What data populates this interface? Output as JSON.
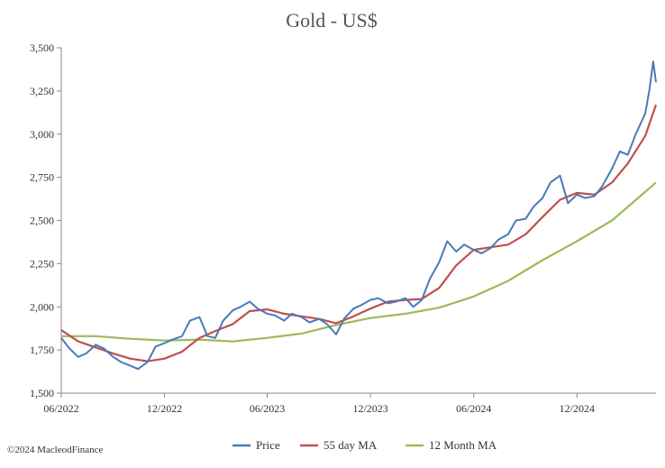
{
  "chart_data": {
    "type": "line",
    "title": "Gold - US$",
    "xlabel": "",
    "ylabel": "",
    "x_tick_labels": [
      "06/2022",
      "12/2022",
      "06/2023",
      "12/2023",
      "06/2024",
      "12/2024"
    ],
    "y_tick_labels": [
      "1,500",
      "1,750",
      "2,000",
      "2,250",
      "2,500",
      "2,750",
      "3,000",
      "3,250",
      "3,500"
    ],
    "ylim": [
      1500,
      3500
    ],
    "xlim": [
      "2022-06-01",
      "2025-04-20"
    ],
    "grid": false,
    "legend_position": "bottom",
    "footer": "©2024 MacleodFinance",
    "series": [
      {
        "name": "Price",
        "color": "#4a7ab8",
        "x": [
          "2022-06-01",
          "2022-06-15",
          "2022-07-01",
          "2022-07-15",
          "2022-08-01",
          "2022-08-15",
          "2022-09-01",
          "2022-09-15",
          "2022-10-01",
          "2022-10-15",
          "2022-11-01",
          "2022-11-15",
          "2022-12-01",
          "2022-12-15",
          "2023-01-01",
          "2023-01-15",
          "2023-02-01",
          "2023-02-15",
          "2023-03-01",
          "2023-03-15",
          "2023-04-01",
          "2023-04-15",
          "2023-05-01",
          "2023-05-15",
          "2023-06-01",
          "2023-06-15",
          "2023-07-01",
          "2023-07-15",
          "2023-08-01",
          "2023-08-15",
          "2023-09-01",
          "2023-09-15",
          "2023-10-01",
          "2023-10-15",
          "2023-11-01",
          "2023-11-15",
          "2023-12-01",
          "2023-12-15",
          "2024-01-01",
          "2024-01-15",
          "2024-02-01",
          "2024-02-15",
          "2024-03-01",
          "2024-03-15",
          "2024-04-01",
          "2024-04-15",
          "2024-05-01",
          "2024-05-15",
          "2024-06-01",
          "2024-06-15",
          "2024-07-01",
          "2024-07-15",
          "2024-08-01",
          "2024-08-15",
          "2024-09-01",
          "2024-09-15",
          "2024-10-01",
          "2024-10-15",
          "2024-11-01",
          "2024-11-15",
          "2024-12-01",
          "2024-12-15",
          "2025-01-01",
          "2025-01-15",
          "2025-02-01",
          "2025-02-15",
          "2025-03-01",
          "2025-03-15",
          "2025-04-01",
          "2025-04-08",
          "2025-04-15",
          "2025-04-20"
        ],
        "values": [
          1820,
          1760,
          1710,
          1730,
          1780,
          1760,
          1710,
          1680,
          1660,
          1640,
          1680,
          1770,
          1790,
          1810,
          1830,
          1920,
          1940,
          1830,
          1820,
          1920,
          1980,
          2000,
          2030,
          1990,
          1960,
          1950,
          1920,
          1960,
          1940,
          1910,
          1930,
          1900,
          1840,
          1930,
          1990,
          2010,
          2040,
          2050,
          2020,
          2030,
          2050,
          2000,
          2040,
          2160,
          2260,
          2380,
          2320,
          2360,
          2330,
          2310,
          2340,
          2390,
          2420,
          2500,
          2510,
          2580,
          2630,
          2720,
          2760,
          2600,
          2650,
          2630,
          2640,
          2700,
          2800,
          2900,
          2880,
          3000,
          3120,
          3250,
          3420,
          3300
        ]
      },
      {
        "name": "55 day MA",
        "color": "#c0504d",
        "x": [
          "2022-06-01",
          "2022-07-01",
          "2022-08-01",
          "2022-09-01",
          "2022-10-01",
          "2022-11-01",
          "2022-12-01",
          "2023-01-01",
          "2023-02-01",
          "2023-03-01",
          "2023-04-01",
          "2023-05-01",
          "2023-06-01",
          "2023-07-01",
          "2023-08-01",
          "2023-09-01",
          "2023-10-01",
          "2023-11-01",
          "2023-12-01",
          "2024-01-01",
          "2024-02-01",
          "2024-03-01",
          "2024-04-01",
          "2024-05-01",
          "2024-06-01",
          "2024-07-01",
          "2024-08-01",
          "2024-09-01",
          "2024-10-01",
          "2024-11-01",
          "2024-12-01",
          "2025-01-01",
          "2025-02-01",
          "2025-03-01",
          "2025-04-01",
          "2025-04-20"
        ],
        "values": [
          1865,
          1800,
          1765,
          1730,
          1700,
          1685,
          1700,
          1740,
          1820,
          1860,
          1900,
          1975,
          1985,
          1960,
          1945,
          1930,
          1905,
          1945,
          1990,
          2030,
          2040,
          2045,
          2110,
          2240,
          2330,
          2345,
          2360,
          2420,
          2520,
          2620,
          2660,
          2650,
          2720,
          2830,
          2990,
          3170
        ]
      },
      {
        "name": "12 Month MA",
        "color": "#9bbb59",
        "x": [
          "2022-06-01",
          "2022-08-01",
          "2022-10-01",
          "2022-12-01",
          "2023-02-01",
          "2023-04-01",
          "2023-06-01",
          "2023-08-01",
          "2023-10-01",
          "2023-12-01",
          "2024-02-01",
          "2024-04-01",
          "2024-06-01",
          "2024-08-01",
          "2024-10-01",
          "2024-12-01",
          "2025-02-01",
          "2025-04-20"
        ],
        "values": [
          1830,
          1830,
          1815,
          1805,
          1810,
          1800,
          1820,
          1845,
          1895,
          1935,
          1960,
          1995,
          2060,
          2150,
          2270,
          2380,
          2500,
          2720
        ]
      }
    ]
  }
}
